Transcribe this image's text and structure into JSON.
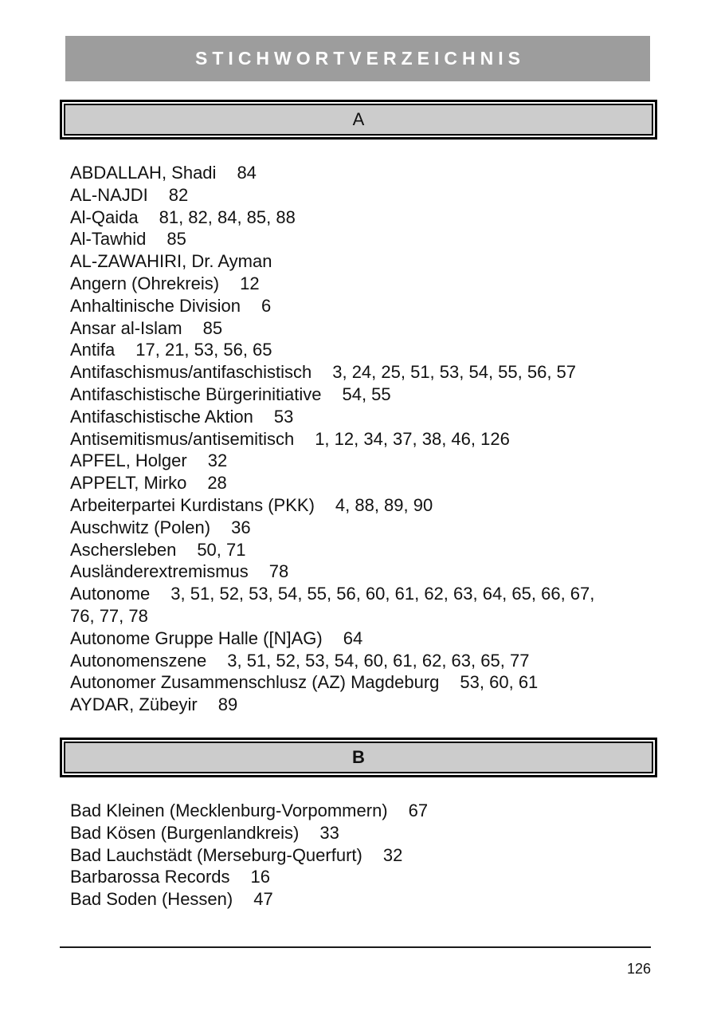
{
  "header": {
    "title": "STICHWORTVERZEICHNIS"
  },
  "footer": {
    "page_number": "126"
  },
  "colors": {
    "banner_bg": "#9d9d9d",
    "banner_text": "#ffffff",
    "section_box_bg": "#cccccc",
    "border": "#000000",
    "text": "#121212"
  },
  "sections": [
    {
      "letter": "A",
      "entries": [
        {
          "term": "ABDALLAH, Shadi",
          "pages": "84"
        },
        {
          "term": "AL-NAJDI",
          "pages": "82"
        },
        {
          "term": "Al-Qaida",
          "pages": "81, 82, 84, 85, 88"
        },
        {
          "term": "Al-Tawhid",
          "pages": "85"
        },
        {
          "term": "AL-ZAWAHIRI, Dr. Ayman",
          "pages": ""
        },
        {
          "term": "Angern (Ohrekreis)",
          "pages": "12"
        },
        {
          "term": "Anhaltinische Division",
          "pages": "6"
        },
        {
          "term": "Ansar al-Islam",
          "pages": "85"
        },
        {
          "term": "Antifa",
          "pages": "17, 21, 53, 56, 65"
        },
        {
          "term": "Antifaschismus/antifaschistisch",
          "pages": "3, 24, 25, 51, 53, 54, 55, 56, 57"
        },
        {
          "term": "Antifaschistische Bürgerinitiative",
          "pages": "54, 55"
        },
        {
          "term": "Antifaschistische Aktion",
          "pages": "53"
        },
        {
          "term": "Antisemitismus/antisemitisch",
          "pages": "1, 12, 34, 37, 38, 46, 126"
        },
        {
          "term": "APFEL, Holger",
          "pages": "32"
        },
        {
          "term": "APPELT, Mirko",
          "pages": "28"
        },
        {
          "term": "Arbeiterpartei Kurdistans (PKK)",
          "pages": "4, 88, 89, 90"
        },
        {
          "term": "Auschwitz (Polen)",
          "pages": "36"
        },
        {
          "term": "Aschersleben",
          "pages": "50, 71"
        },
        {
          "term": "Ausländerextremismus",
          "pages": "78"
        },
        {
          "term": "Autonome",
          "pages": "3, 51, 52, 53, 54, 55, 56, 60, 61, 62, 63, 64, 65, 66, 67, 76, 77, 78"
        },
        {
          "term": "Autonome Gruppe Halle ([N]AG)",
          "pages": "64"
        },
        {
          "term": "Autonomenszene",
          "pages": "3, 51, 52, 53, 54, 60, 61, 62, 63, 65, 77"
        },
        {
          "term": "Autonomer Zusammenschlusz (AZ) Magdeburg",
          "pages": "53, 60, 61"
        },
        {
          "term": "AYDAR, Zübeyir",
          "pages": "89"
        }
      ]
    },
    {
      "letter": "B",
      "entries": [
        {
          "term": "Bad Kleinen (Mecklenburg-Vorpommern)",
          "pages": "67"
        },
        {
          "term": "Bad Kösen (Burgenlandkreis)",
          "pages": "33"
        },
        {
          "term": "Bad Lauchstädt (Merseburg-Querfurt)",
          "pages": "32"
        },
        {
          "term": "Barbarossa Records",
          "pages": "16"
        },
        {
          "term": "Bad Soden (Hessen)",
          "pages": "47"
        }
      ]
    }
  ]
}
